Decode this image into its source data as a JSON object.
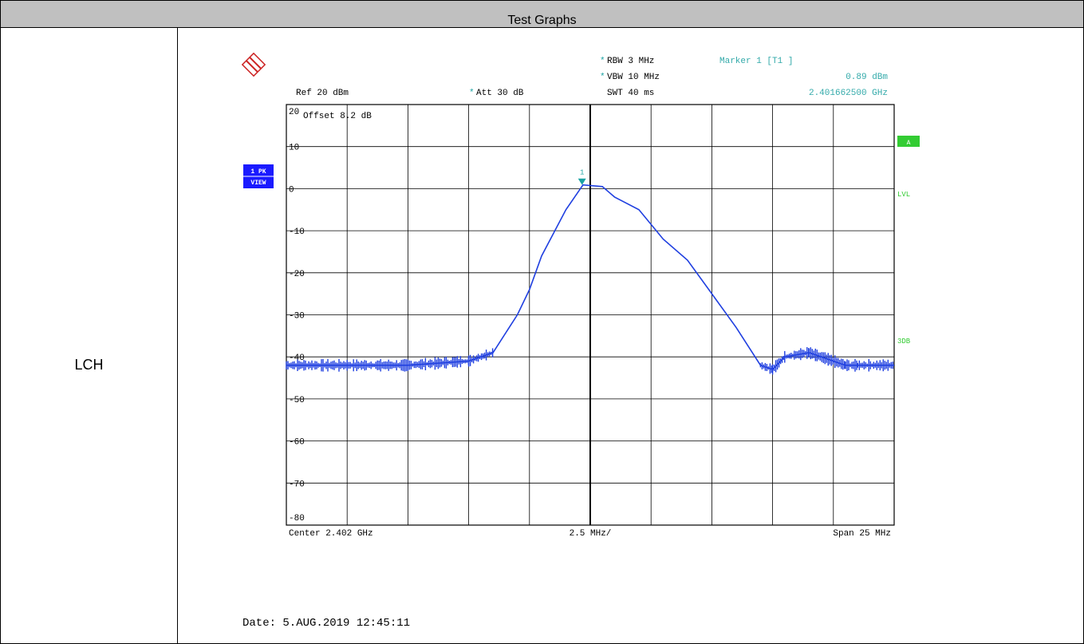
{
  "header": {
    "title": "Test Graphs"
  },
  "row": {
    "label": "LCH"
  },
  "instrument": {
    "ref_level": "Ref  20 dBm",
    "att": "Att  30 dB",
    "rbw": "RBW 3 MHz",
    "vbw": "VBW 10 MHz",
    "swt": "SWT 40 ms",
    "marker_title": "Marker 1 [T1 ]",
    "marker_level": "0.89 dBm",
    "marker_freq": "2.401662500 GHz",
    "offset": "Offset  8.2 dB",
    "trace_box_line1": "1 PK",
    "trace_box_line2": "VIEW",
    "right_box": "A",
    "lvl_label": "LVL",
    "db3_label": "3DB",
    "marker_number": "1",
    "center": "Center 2.402 GHz",
    "per_div": "2.5 MHz/",
    "span": "Span 25 MHz",
    "date": "Date: 5.AUG.2019  12:45:11"
  },
  "colors": {
    "trace": "#1f3fe0",
    "marker": "#1aa3a3",
    "header_bg": "#c0c0c0",
    "badge_green": "#33cc33",
    "badge_blue": "#1a1aff",
    "annot_teal": "#33aaaa"
  },
  "chart_data": {
    "type": "line",
    "xlabel": "",
    "ylabel": "",
    "x_unit": "GHz",
    "y_unit": "dBm",
    "xlim": [
      2.3895,
      2.4145
    ],
    "ylim": [
      -80,
      20
    ],
    "y_ticks": [
      20,
      10,
      0,
      -10,
      -20,
      -30,
      -40,
      -50,
      -60,
      -70,
      -80
    ],
    "y_tick_labels": [
      "20",
      "10",
      "0",
      "-10",
      "-20",
      "-30",
      "-40",
      "-50",
      "-60",
      "-70",
      "-80"
    ],
    "grid": true,
    "series": [
      {
        "x": [
          2.3895,
          2.392,
          2.3945,
          2.397,
          2.398,
          2.399,
          2.3995,
          2.4,
          2.401,
          2.4017,
          2.4025,
          2.403,
          2.404,
          2.405,
          2.406,
          2.407,
          2.408,
          2.409,
          2.4095,
          2.41,
          2.411,
          2.412,
          2.4125,
          2.413,
          2.4145
        ],
        "y": [
          -42,
          -42,
          -42,
          -41,
          -39,
          -30,
          -24,
          -16,
          -5,
          0.89,
          0.5,
          -2,
          -5,
          -12,
          -17,
          -25,
          -33,
          -42,
          -43,
          -40,
          -39,
          -41,
          -42,
          -42,
          -42
        ]
      }
    ],
    "marker": {
      "x": 2.4016625,
      "y": 0.89,
      "label": "1"
    }
  }
}
